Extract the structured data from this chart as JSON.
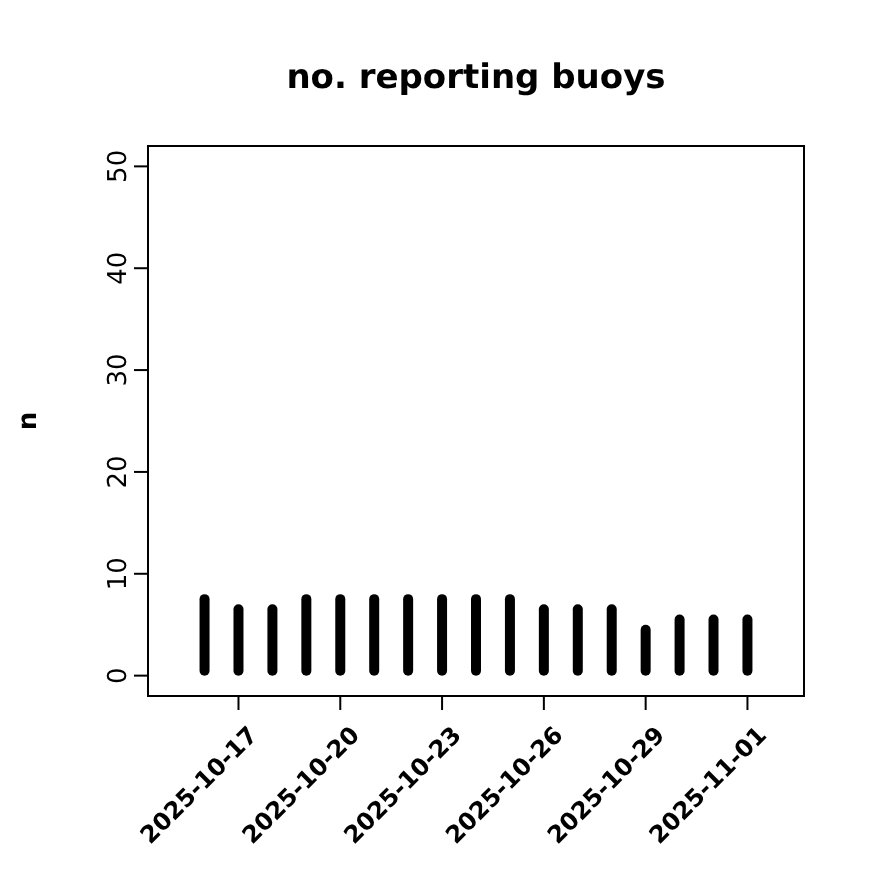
{
  "chart_data": {
    "type": "bar",
    "title": "no. reporting buoys",
    "ylabel": "n",
    "x": [
      "2025-10-16",
      "2025-10-17",
      "2025-10-18",
      "2025-10-19",
      "2025-10-20",
      "2025-10-21",
      "2025-10-22",
      "2025-10-23",
      "2025-10-24",
      "2025-10-25",
      "2025-10-26",
      "2025-10-27",
      "2025-10-28",
      "2025-10-29",
      "2025-10-30",
      "2025-10-31",
      "2025-11-01"
    ],
    "values": [
      8,
      7,
      7,
      8,
      8,
      8,
      8,
      8,
      8,
      8,
      7,
      7,
      7,
      5,
      6,
      6,
      6
    ],
    "color": "#000000",
    "xlim": [
      "2025-10-14T08:00",
      "2025-11-02T16:00"
    ],
    "xticks": [
      "2025-10-17",
      "2025-10-20",
      "2025-10-23",
      "2025-10-26",
      "2025-10-29",
      "2025-11-01"
    ],
    "ylim": [
      -2,
      52
    ],
    "yticks": [
      0,
      10,
      20,
      30,
      40,
      50
    ],
    "grid": false
  }
}
